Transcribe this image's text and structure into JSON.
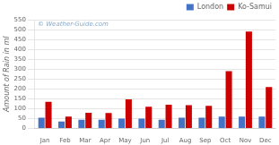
{
  "chart_data": {
    "type": "bar",
    "categories": [
      "Jan",
      "Feb",
      "Mar",
      "Apr",
      "May",
      "Jun",
      "Jul",
      "Aug",
      "Sep",
      "Oct",
      "Nov",
      "Dec"
    ],
    "series": [
      {
        "name": "London",
        "color": "#4472c4",
        "values": [
          55,
          35,
          45,
          45,
          50,
          50,
          45,
          55,
          55,
          60,
          60,
          60
        ]
      },
      {
        "name": "Ko-Samui",
        "color": "#cc0000",
        "values": [
          135,
          60,
          80,
          78,
          148,
          110,
          120,
          118,
          115,
          290,
          490,
          210
        ]
      }
    ],
    "y_label": "Amount of Rain in ml",
    "annotations": [
      "© Weather-Guide.com"
    ],
    "ylim": [
      0,
      550
    ],
    "yticks": [
      0,
      50,
      100,
      150,
      200,
      250,
      300,
      350,
      400,
      450,
      500,
      550
    ],
    "grid": true,
    "legend": "upper right"
  }
}
